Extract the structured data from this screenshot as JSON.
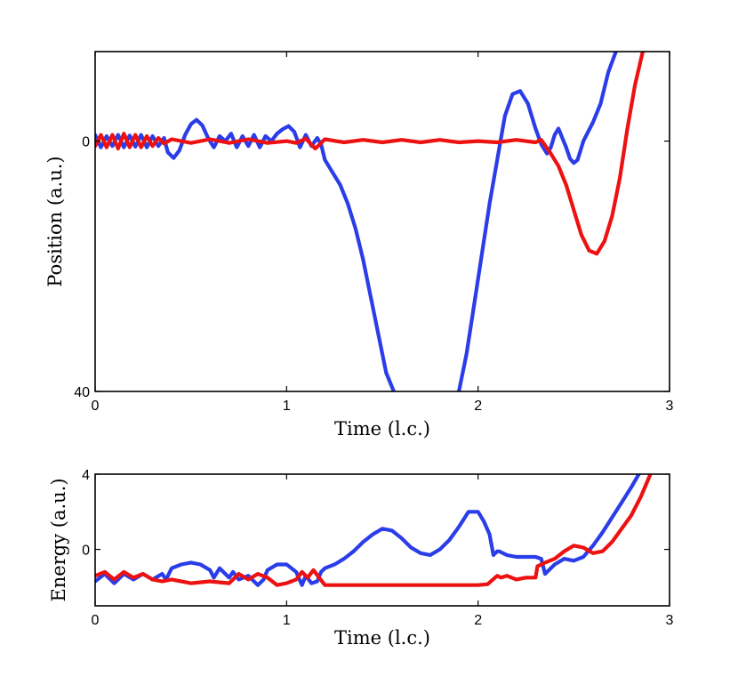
{
  "chart_data": [
    {
      "type": "line",
      "panel": "top",
      "xlabel": "Time (l.c.)",
      "ylabel": "Position (a.u.)",
      "xlim": [
        0,
        3
      ],
      "ylim": [
        40,
        -14.3
      ],
      "x_ticks": [
        "0",
        "1",
        "2",
        "3"
      ],
      "y_ticks": [
        {
          "value": 0,
          "label": "0"
        },
        {
          "value": 40,
          "label": "40"
        }
      ],
      "grid": false,
      "series": [
        {
          "name": "blue",
          "color": "#2b3de8",
          "x": [
            0,
            0.03,
            0.06,
            0.09,
            0.12,
            0.15,
            0.18,
            0.21,
            0.24,
            0.27,
            0.3,
            0.33,
            0.36,
            0.38,
            0.41,
            0.44,
            0.47,
            0.5,
            0.53,
            0.56,
            0.59,
            0.62,
            0.65,
            0.68,
            0.71,
            0.74,
            0.77,
            0.8,
            0.83,
            0.86,
            0.89,
            0.92,
            0.95,
            0.98,
            1.01,
            1.04,
            1.07,
            1.1,
            1.13,
            1.16,
            1.18,
            1.2,
            1.24,
            1.28,
            1.32,
            1.36,
            1.4,
            1.44,
            1.48,
            1.52,
            1.56
          ],
          "y": [
            -1,
            1,
            -0.8,
            0.8,
            -1,
            1,
            -0.9,
            0.9,
            -1,
            1,
            -0.8,
            0.8,
            -0.5,
            1.8,
            2.7,
            1.5,
            -1,
            -2.7,
            -3.4,
            -2.5,
            -0.5,
            1,
            -0.8,
            0,
            -1.2,
            1,
            -0.8,
            0.8,
            -1,
            1,
            -0.8,
            0,
            -1.2,
            -1.9,
            -2.4,
            -1.5,
            1,
            -1,
            0.8,
            -0.5,
            0.5,
            3,
            5,
            7,
            10,
            14,
            19,
            25,
            31,
            37,
            40
          ]
        },
        {
          "name": "blue-late",
          "color": "#2b3de8",
          "x": [
            1.9,
            1.94,
            1.98,
            2.02,
            2.06,
            2.1,
            2.14,
            2.18,
            2.22,
            2.26,
            2.3,
            2.33,
            2.36,
            2.38,
            2.4,
            2.42,
            2.44,
            2.46,
            2.48,
            2.5,
            2.52,
            2.55,
            2.6,
            2.64,
            2.68,
            2.72
          ],
          "y": [
            40,
            34,
            26,
            18,
            10,
            3,
            -4,
            -7.5,
            -8,
            -6,
            -2,
            0.5,
            2,
            1,
            -1,
            -2,
            -0.5,
            1,
            2.8,
            3.5,
            3,
            0,
            -3,
            -6,
            -11,
            -14.3
          ]
        },
        {
          "name": "red",
          "color": "#ee1111",
          "x": [
            0,
            0.03,
            0.06,
            0.09,
            0.12,
            0.15,
            0.18,
            0.21,
            0.24,
            0.27,
            0.3,
            0.33,
            0.36,
            0.4,
            0.5,
            0.6,
            0.7,
            0.8,
            0.9,
            1,
            1.05,
            1.1,
            1.15,
            1.2,
            1.3,
            1.4,
            1.5,
            1.6,
            1.7,
            1.8,
            1.9,
            2,
            2.1,
            2.2,
            2.3,
            2.33,
            2.38,
            2.42,
            2.46,
            2.5,
            2.54,
            2.58,
            2.62,
            2.66,
            2.7,
            2.74,
            2.78,
            2.82,
            2.86
          ],
          "y": [
            0.8,
            -1,
            1,
            -1,
            1.2,
            -1.2,
            1,
            -1,
            1,
            -0.8,
            0.8,
            -0.5,
            0.4,
            -0.3,
            0.3,
            -0.3,
            0.3,
            -0.3,
            0.3,
            0,
            0.3,
            -0.4,
            1.2,
            -0.3,
            0.2,
            -0.2,
            0.2,
            -0.2,
            0.2,
            -0.2,
            0.2,
            0,
            0.2,
            -0.2,
            0.2,
            -0.2,
            2,
            4,
            7,
            11,
            15,
            17.5,
            18,
            16,
            12,
            6,
            -2,
            -9,
            -14.3
          ]
        }
      ]
    },
    {
      "type": "line",
      "panel": "bottom",
      "xlabel": "Time (l.c.)",
      "ylabel": "Energy (a.u.)",
      "xlim": [
        0,
        3
      ],
      "ylim": [
        -3,
        4
      ],
      "x_ticks": [
        "0",
        "1",
        "2",
        "3"
      ],
      "y_ticks": [
        {
          "value": 0,
          "label": "0"
        },
        {
          "value": 4,
          "label": "4"
        }
      ],
      "grid": false,
      "series": [
        {
          "name": "blue",
          "color": "#2b3de8",
          "x": [
            0,
            0.05,
            0.1,
            0.15,
            0.2,
            0.25,
            0.3,
            0.35,
            0.37,
            0.4,
            0.45,
            0.5,
            0.55,
            0.6,
            0.62,
            0.65,
            0.7,
            0.72,
            0.75,
            0.8,
            0.85,
            0.88,
            0.9,
            0.95,
            1,
            1.05,
            1.08,
            1.1,
            1.13,
            1.16,
            1.18,
            1.2,
            1.25,
            1.3,
            1.35,
            1.4,
            1.45,
            1.5,
            1.55,
            1.6,
            1.65,
            1.7,
            1.75,
            1.8,
            1.85,
            1.9,
            1.95,
            2,
            2.03,
            2.06,
            2.08,
            2.1,
            2.11,
            2.15,
            2.2,
            2.25,
            2.3,
            2.33,
            2.35,
            2.4,
            2.45,
            2.5,
            2.55,
            2.6,
            2.65,
            2.7,
            2.75,
            2.8,
            2.84
          ],
          "y": [
            -1.7,
            -1.3,
            -1.8,
            -1.3,
            -1.6,
            -1.3,
            -1.6,
            -1.3,
            -1.6,
            -1,
            -0.8,
            -0.7,
            -0.8,
            -1.1,
            -1.5,
            -1,
            -1.5,
            -1.2,
            -1.6,
            -1.4,
            -1.9,
            -1.6,
            -1.1,
            -0.8,
            -0.8,
            -1.2,
            -1.9,
            -1.4,
            -1.8,
            -1.7,
            -1.2,
            -1,
            -0.8,
            -0.5,
            -0.1,
            0.4,
            0.8,
            1.1,
            1,
            0.6,
            0.1,
            -0.2,
            -0.3,
            0,
            0.5,
            1.2,
            2,
            2,
            1.5,
            0.8,
            -0.3,
            -0.1,
            -0.1,
            -0.3,
            -0.4,
            -0.4,
            -0.4,
            -0.5,
            -1.3,
            -0.8,
            -0.5,
            -0.6,
            -0.4,
            0.2,
            0.9,
            1.7,
            2.5,
            3.3,
            4
          ]
        },
        {
          "name": "red",
          "color": "#ee1111",
          "x": [
            0,
            0.05,
            0.1,
            0.15,
            0.2,
            0.25,
            0.3,
            0.35,
            0.4,
            0.5,
            0.6,
            0.7,
            0.75,
            0.8,
            0.85,
            0.9,
            0.95,
            1,
            1.05,
            1.08,
            1.11,
            1.14,
            1.17,
            1.2,
            1.3,
            1.4,
            1.5,
            1.6,
            1.7,
            1.8,
            1.9,
            2,
            2.05,
            2.1,
            2.12,
            2.15,
            2.2,
            2.25,
            2.3,
            2.31,
            2.35,
            2.4,
            2.45,
            2.5,
            2.55,
            2.6,
            2.65,
            2.7,
            2.75,
            2.8,
            2.85,
            2.9
          ],
          "y": [
            -1.4,
            -1.2,
            -1.6,
            -1.2,
            -1.5,
            -1.3,
            -1.6,
            -1.7,
            -1.6,
            -1.8,
            -1.7,
            -1.8,
            -1.3,
            -1.6,
            -1.3,
            -1.5,
            -1.9,
            -1.8,
            -1.6,
            -1.2,
            -1.5,
            -1.1,
            -1.5,
            -1.9,
            -1.9,
            -1.9,
            -1.9,
            -1.9,
            -1.9,
            -1.9,
            -1.9,
            -1.9,
            -1.85,
            -1.4,
            -1.5,
            -1.4,
            -1.6,
            -1.5,
            -1.5,
            -0.9,
            -0.7,
            -0.5,
            -0.1,
            0.2,
            0.1,
            -0.2,
            -0.1,
            0.4,
            1.1,
            1.8,
            2.8,
            4
          ]
        }
      ]
    }
  ]
}
